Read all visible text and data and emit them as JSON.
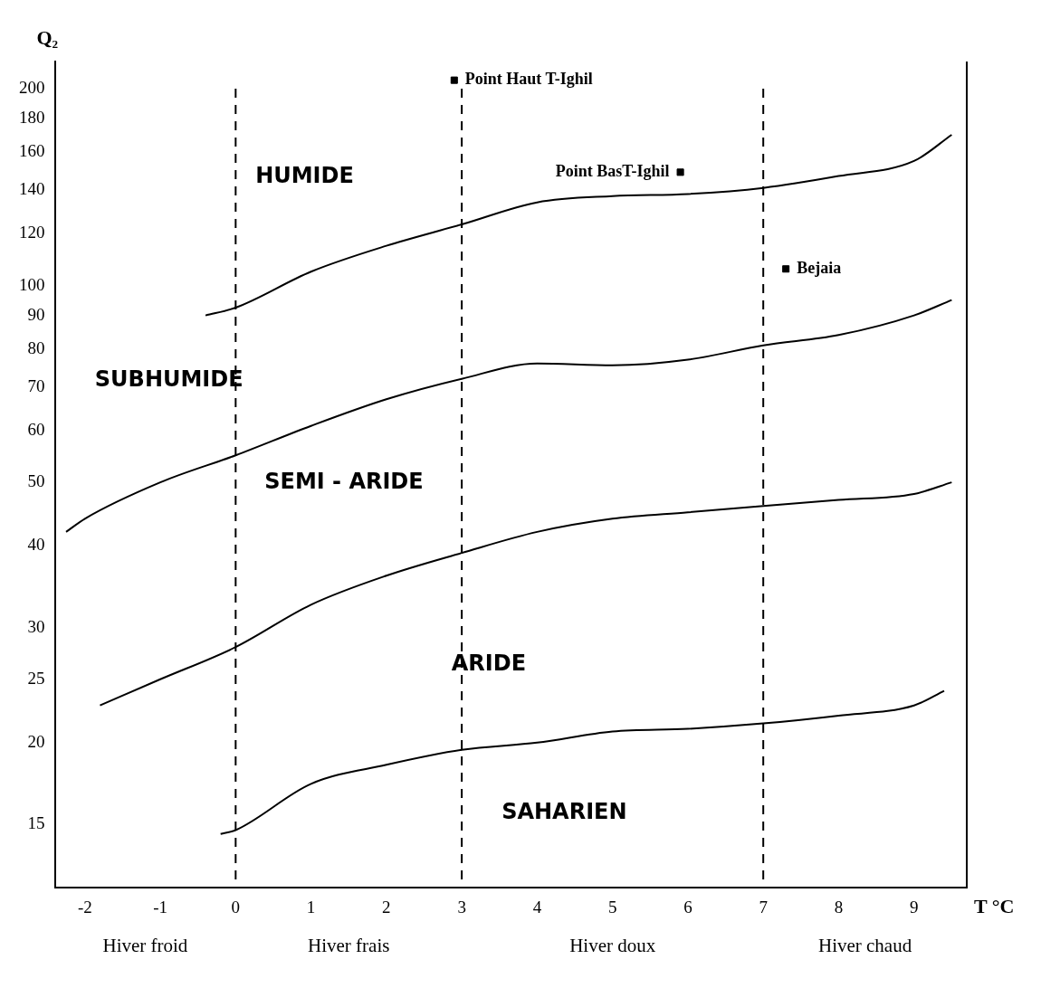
{
  "chart_data": {
    "type": "line",
    "xlabel": "T °C",
    "ylabel": "Q₂",
    "log": "y",
    "grid": false,
    "legend": false,
    "xlim": [
      -2.4,
      9.7
    ],
    "ylim": [
      12,
      220
    ],
    "xticks": [
      -2,
      -1,
      0,
      1,
      2,
      3,
      4,
      5,
      6,
      7,
      8,
      9
    ],
    "yticks": [
      15,
      20,
      25,
      30,
      40,
      50,
      60,
      70,
      80,
      90,
      100,
      120,
      140,
      160,
      180,
      200
    ],
    "series": [
      {
        "type": "line",
        "color": "#000000",
        "x": [
          -0.4,
          0,
          1,
          2,
          3,
          4,
          5,
          6,
          7,
          8,
          9,
          9.5
        ],
        "values": [
          90,
          92.5,
          105,
          115,
          124,
          134,
          137,
          138,
          141,
          147,
          155,
          170
        ]
      },
      {
        "type": "line",
        "color": "#000000",
        "x": [
          -2.25,
          -2,
          -1,
          0,
          1,
          2,
          3,
          4,
          5,
          6,
          7,
          8,
          9,
          9.5
        ],
        "values": [
          42,
          44,
          50,
          55,
          61,
          67,
          72,
          76,
          75.5,
          77,
          81,
          84,
          90,
          95
        ]
      },
      {
        "type": "line",
        "color": "#000000",
        "x": [
          -1.8,
          -1,
          0,
          1,
          2,
          3,
          4,
          5,
          6,
          7,
          8,
          9,
          9.5
        ],
        "values": [
          22.8,
          25,
          28,
          32.5,
          36,
          39,
          42,
          44,
          45,
          46,
          47,
          48,
          50
        ]
      },
      {
        "type": "line",
        "color": "#000000",
        "x": [
          -0.2,
          0,
          1,
          2,
          3,
          4,
          5,
          6,
          7,
          8,
          9,
          9.4
        ],
        "values": [
          14.5,
          14.7,
          17.3,
          18.5,
          19.5,
          20,
          20.8,
          21,
          21.4,
          22,
          22.8,
          24
        ]
      },
      {
        "type": "scatter",
        "name": "Point Haut T-Ighil",
        "color": "#000000",
        "marker": "square",
        "x": [
          2.9
        ],
        "values": [
          206
        ]
      },
      {
        "type": "scatter",
        "name": "Point BasT-Ighil",
        "color": "#000000",
        "marker": "square",
        "x": [
          5.9
        ],
        "values": [
          149
        ]
      },
      {
        "type": "scatter",
        "name": "Bejaia",
        "color": "#000000",
        "marker": "square",
        "x": [
          7.3
        ],
        "values": [
          106
        ]
      }
    ],
    "ref_lines": [
      {
        "axis": "x",
        "value": 0,
        "line_style": "dashed"
      },
      {
        "axis": "x",
        "value": 3,
        "line_style": "dashed"
      },
      {
        "axis": "x",
        "value": 7,
        "line_style": "dashed"
      }
    ],
    "annotations": [
      "HUMIDE",
      "SUBHUMIDE",
      "SEMI - ARIDE",
      "ARIDE",
      "SAHARIEN",
      "Hiver froid",
      "Hiver frais",
      "Hiver doux",
      "Hiver chaud"
    ]
  }
}
